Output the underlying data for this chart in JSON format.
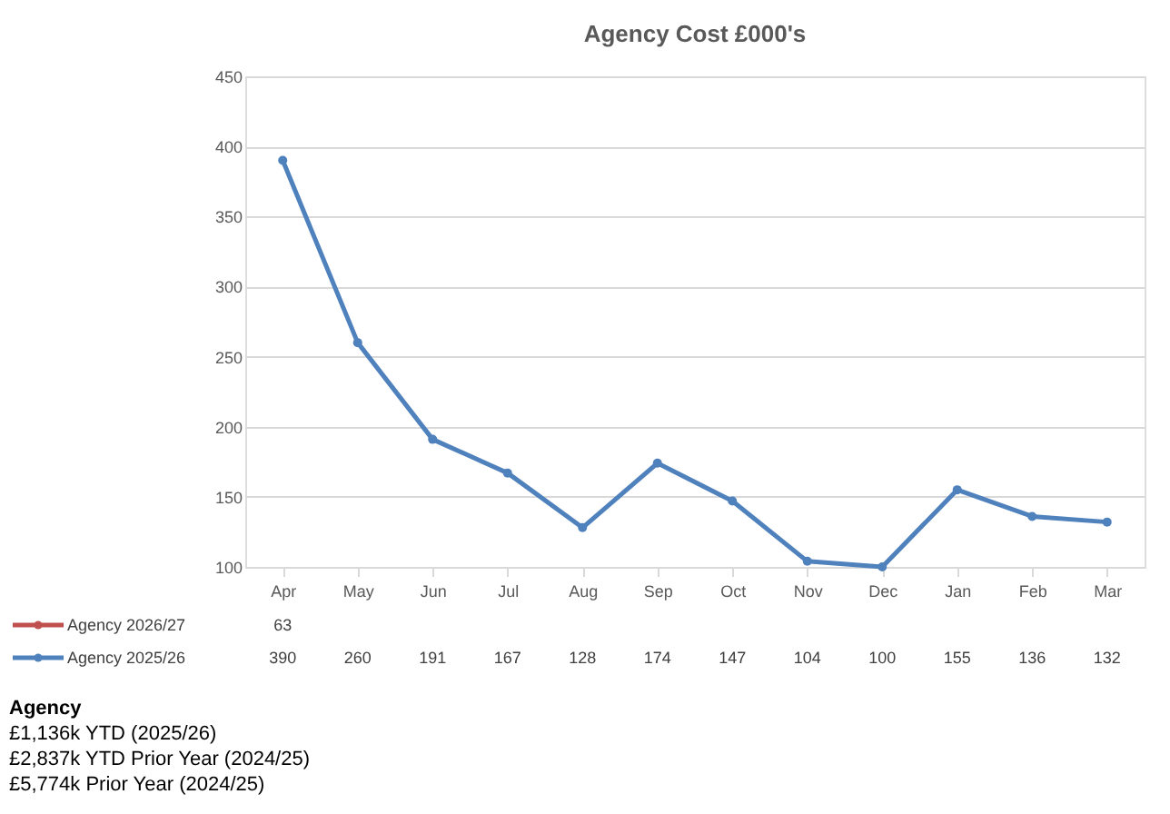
{
  "chart_data": {
    "type": "line",
    "title": "Agency Cost £000's",
    "categories": [
      "Apr",
      "May",
      "Jun",
      "Jul",
      "Aug",
      "Sep",
      "Oct",
      "Nov",
      "Dec",
      "Jan",
      "Feb",
      "Mar"
    ],
    "series": [
      {
        "name": "Agency 2026/27",
        "color": "#c0504d",
        "values": [
          null,
          null,
          null,
          null,
          null,
          null,
          null,
          null,
          null,
          null,
          null,
          null
        ],
        "value_labels": [
          "63",
          null,
          null,
          null,
          null,
          null,
          null,
          null,
          null,
          null,
          null,
          null
        ]
      },
      {
        "name": "Agency 2025/26",
        "color": "#4f81bd",
        "values": [
          390,
          260,
          191,
          167,
          128,
          174,
          147,
          104,
          100,
          155,
          136,
          132
        ]
      }
    ],
    "ylim": [
      100,
      450
    ],
    "yticks": [
      100,
      150,
      200,
      250,
      300,
      350,
      400,
      450
    ],
    "grid": "y",
    "legend": "bottom",
    "marker": "circle",
    "line_style": "solid",
    "data_labels": true,
    "annotations": [
      "Agency",
      "£1,136k YTD (2025/26)",
      "£2,837k YTD Prior Year (2024/25)",
      "£5,774k Prior Year (2024/25)"
    ]
  }
}
